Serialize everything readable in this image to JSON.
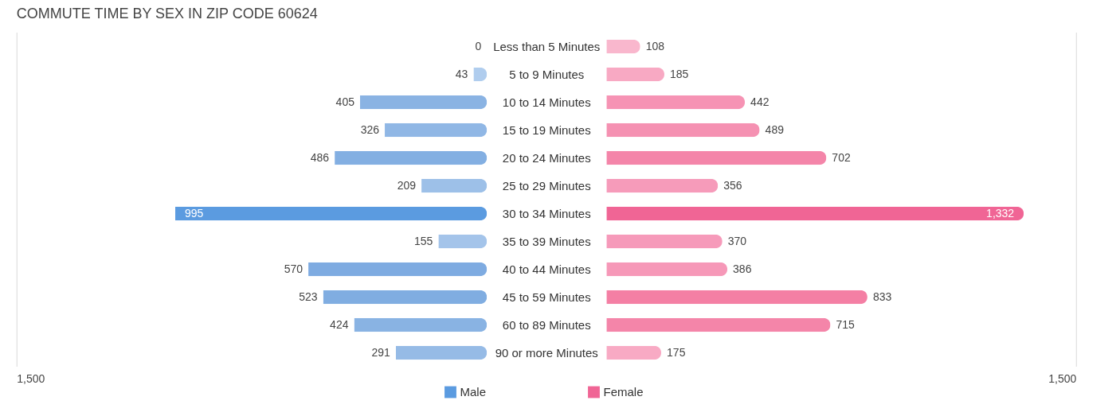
{
  "chart_data": [
    {
      "type": "bar",
      "orientation": "horizontal",
      "title": "COMMUTE TIME BY SEX IN ZIP CODE 60624",
      "legend": "bottom",
      "categories": [
        "Less than 5 Minutes",
        "5 to 9 Minutes",
        "10 to 14 Minutes",
        "15 to 19 Minutes",
        "20 to 24 Minutes",
        "25 to 29 Minutes",
        "30 to 34 Minutes",
        "35 to 39 Minutes",
        "40 to 44 Minutes",
        "45 to 59 Minutes",
        "60 to 89 Minutes",
        "90 or more Minutes"
      ],
      "series": [
        {
          "name": "Male",
          "color": "#5b9be0",
          "colors": [
            "#b3cfee",
            "#b0cdee",
            "#8ab3e3",
            "#90b7e5",
            "#83afe2",
            "#9dc0e8",
            "#5b9be0",
            "#a4c4ea",
            "#7eabe1",
            "#80ade1",
            "#89b3e3",
            "#96bbe6"
          ],
          "values": [
            0,
            43,
            405,
            326,
            486,
            209,
            995,
            155,
            570,
            523,
            424,
            291
          ],
          "value_labels": [
            "0",
            "43",
            "405",
            "326",
            "486",
            "209",
            "995",
            "155",
            "570",
            "523",
            "424",
            "291"
          ]
        }
      ],
      "xlim": [
        1500,
        0
      ],
      "annotations": [
        "1,500"
      ]
    },
    {
      "type": "bar",
      "orientation": "horizontal",
      "legend": "bottom",
      "categories": [
        null,
        null,
        null,
        null,
        null,
        null,
        null,
        null,
        null,
        null,
        null,
        null
      ],
      "series": [
        {
          "name": "Female",
          "color": "#f06595",
          "colors": [
            "#f9b7cd",
            "#f8a9c3",
            "#f693b4",
            "#f591b2",
            "#f485a9",
            "#f69bba",
            "#f06595",
            "#f69aba",
            "#f698b8",
            "#f47fa4",
            "#f485a9",
            "#f8aac4"
          ],
          "values": [
            108,
            185,
            442,
            489,
            702,
            356,
            1332,
            370,
            386,
            833,
            715,
            175
          ],
          "value_labels": [
            "108",
            "185",
            "442",
            "489",
            "702",
            "356",
            "1,332",
            "370",
            "386",
            "833",
            "715",
            "175"
          ]
        }
      ],
      "xlim": [
        0,
        1500
      ],
      "annotations": [
        "1,500"
      ]
    }
  ]
}
